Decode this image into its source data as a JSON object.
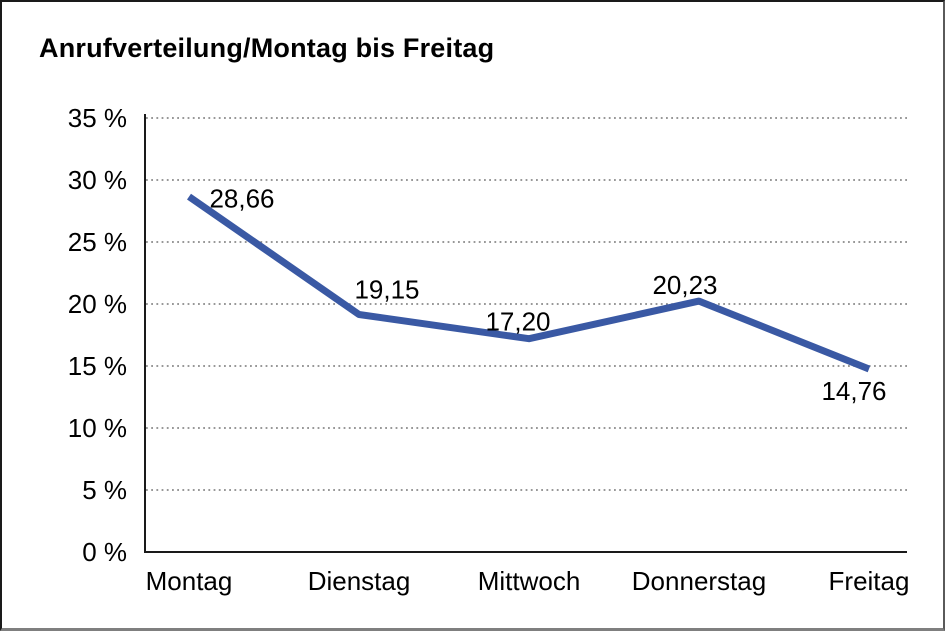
{
  "window": {
    "background": "#ffffff",
    "frame_border_color": "#4d4d4d"
  },
  "chart_data": {
    "type": "line",
    "title": "Anrufverteilung/Montag bis Freitag",
    "categories": [
      "Montag",
      "Dienstag",
      "Mittwoch",
      "Donnerstag",
      "Freitag"
    ],
    "series": [
      {
        "name": "Anrufverteilung",
        "values": [
          28.66,
          19.15,
          17.2,
          20.23,
          14.76
        ]
      }
    ],
    "value_labels": [
      "28,66",
      "19,15",
      "17,20",
      "20,23",
      "14,76"
    ],
    "xlabel": "",
    "ylabel": "",
    "ylim": [
      0,
      35
    ],
    "ytick_step": 5,
    "ytick_labels": [
      "0 %",
      "5 %",
      "10 %",
      "15 %",
      "20 %",
      "25 %",
      "30 %",
      "35 %"
    ],
    "grid": "horizontal-dotted",
    "legend": "none",
    "colors": {
      "line": "#3a59a4",
      "axis": "#1a1a1a",
      "gridline": "#767676",
      "text": "#000000"
    }
  }
}
